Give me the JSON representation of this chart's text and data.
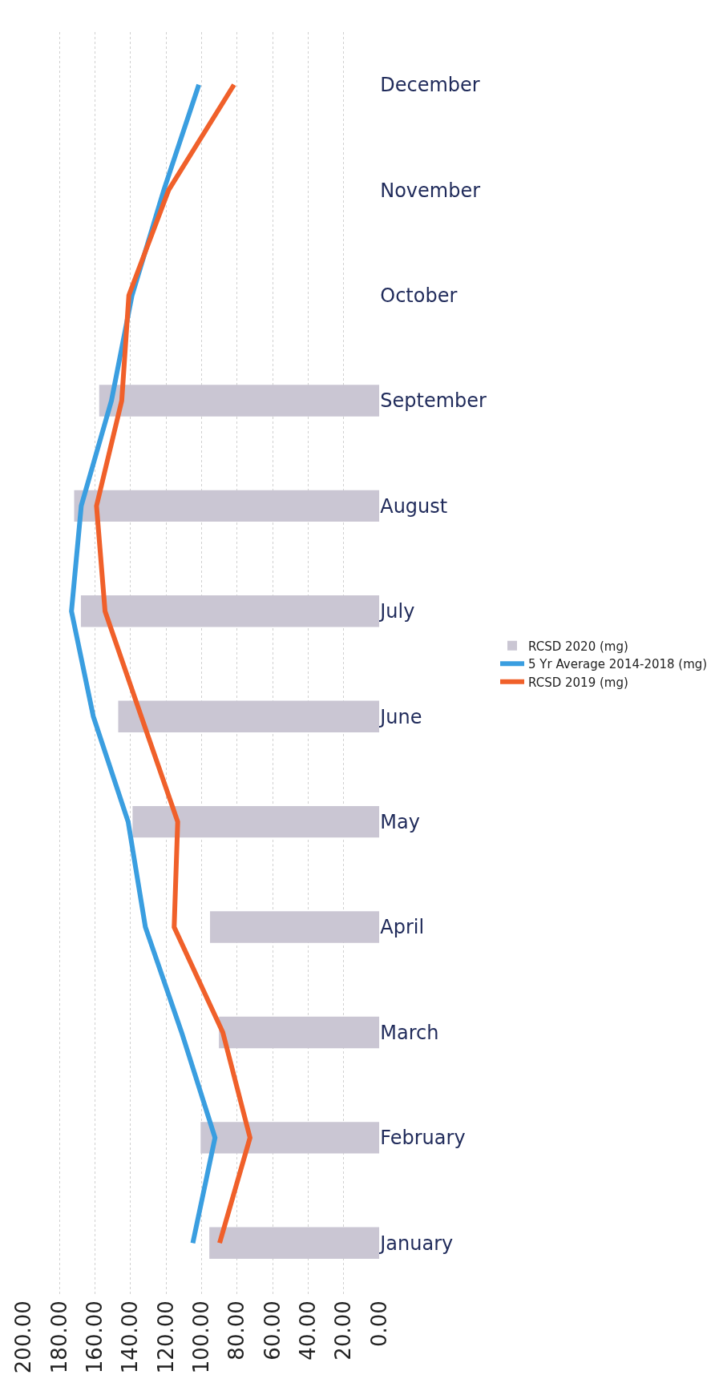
{
  "chart_data": {
    "type": "bar",
    "orientation": "horizontal",
    "categories": [
      "December",
      "November",
      "October",
      "September",
      "August",
      "July",
      "June",
      "May",
      "April",
      "March",
      "February",
      "January"
    ],
    "series": [
      {
        "name": "RCSD 2020 (mg)",
        "color": "#cac6d3",
        "values": [
          null,
          null,
          null,
          157.7,
          171.8,
          168,
          147,
          138.9,
          95.3,
          90.3,
          100.6,
          95.7
        ]
      },
      {
        "name": "5 Yr Average 2014-2018 (mg)",
        "type": "line",
        "color": "#3a9ee0",
        "values": [
          101.6,
          121.3,
          139.2,
          150.8,
          167.8,
          173.3,
          161,
          141.4,
          131.7,
          111.3,
          92.5,
          105
        ]
      },
      {
        "name": "RCSD 2019 (mg)",
        "type": "line",
        "color": "#f0602a",
        "values": [
          81.8,
          118.6,
          141,
          145,
          159.2,
          154.4,
          134,
          113.5,
          115.5,
          88.1,
          72.8,
          89.9
        ]
      }
    ],
    "xlim": [
      200,
      0
    ],
    "xticks": [
      {
        "value": 200,
        "label": "200.00"
      },
      {
        "value": 180,
        "label": "180.00"
      },
      {
        "value": 160,
        "label": "160.00"
      },
      {
        "value": 140,
        "label": "140.00"
      },
      {
        "value": 120,
        "label": "120.00"
      },
      {
        "value": 100,
        "label": "100.00"
      },
      {
        "value": 80,
        "label": "80.00"
      },
      {
        "value": 60,
        "label": "60.00"
      },
      {
        "value": 40,
        "label": "40.00"
      },
      {
        "value": 20,
        "label": "20.00"
      },
      {
        "value": 0,
        "label": "0.00"
      }
    ],
    "grid": "x",
    "legend": "right",
    "line_style": "solid",
    "marker": "none"
  }
}
